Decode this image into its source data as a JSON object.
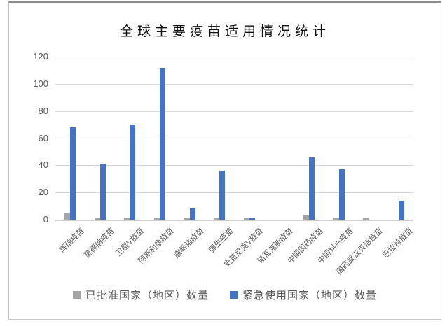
{
  "window": {
    "background": "#ffffff",
    "frame_border_color": "#c6c6c6"
  },
  "chart_data": {
    "type": "bar",
    "title": "全球主要疫苗适用情况统计",
    "categories": [
      "辉瑞疫苗",
      "莫德纳疫苗",
      "卫星V疫苗",
      "阿斯利康疫苗",
      "康希诺疫苗",
      "强生疫苗",
      "史普尼克V疫苗",
      "诺瓦克斯疫苗",
      "中国国药疫苗",
      "中国科兴疫苗",
      "国药武汉灭活疫苗",
      "巴拉特疫苗"
    ],
    "series": [
      {
        "name": "已批准国家（地区）数量",
        "color": "#a5a5a5",
        "values": [
          5,
          1,
          1,
          1,
          1,
          1,
          1,
          0,
          3,
          1,
          1,
          0
        ]
      },
      {
        "name": "紧急使用国家（地区）数量",
        "color": "#4472c4",
        "values": [
          68,
          41,
          70,
          112,
          8,
          36,
          1,
          0,
          46,
          37,
          0,
          14
        ]
      }
    ],
    "y_axis": {
      "min": 0,
      "max": 120,
      "step": 20,
      "ticks": [
        0,
        20,
        40,
        60,
        80,
        100,
        120
      ]
    },
    "x_label": "",
    "y_label": "",
    "grid": true,
    "legend_position": "bottom",
    "gridline_color": "#d9d9d9",
    "axis_line_color": "#cfcfcf",
    "axis_text_color": "#595959",
    "title_color": "#111111"
  }
}
